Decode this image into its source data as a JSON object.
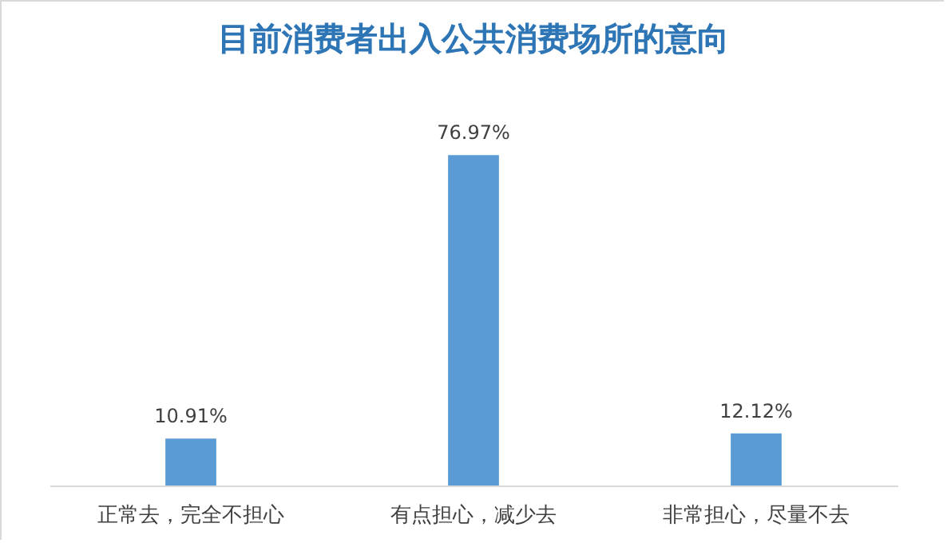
{
  "chart_data": {
    "type": "bar",
    "title": "目前消费者出入公共消费场所的意向",
    "categories": [
      "正常去，完全不担心",
      "有点担心，减少去",
      "非常担心，尽量不去"
    ],
    "values": [
      10.91,
      76.97,
      12.12
    ],
    "color": "#5b9bd5",
    "value_labels": [
      "10.91%",
      "76.97%",
      "12.12%"
    ]
  }
}
